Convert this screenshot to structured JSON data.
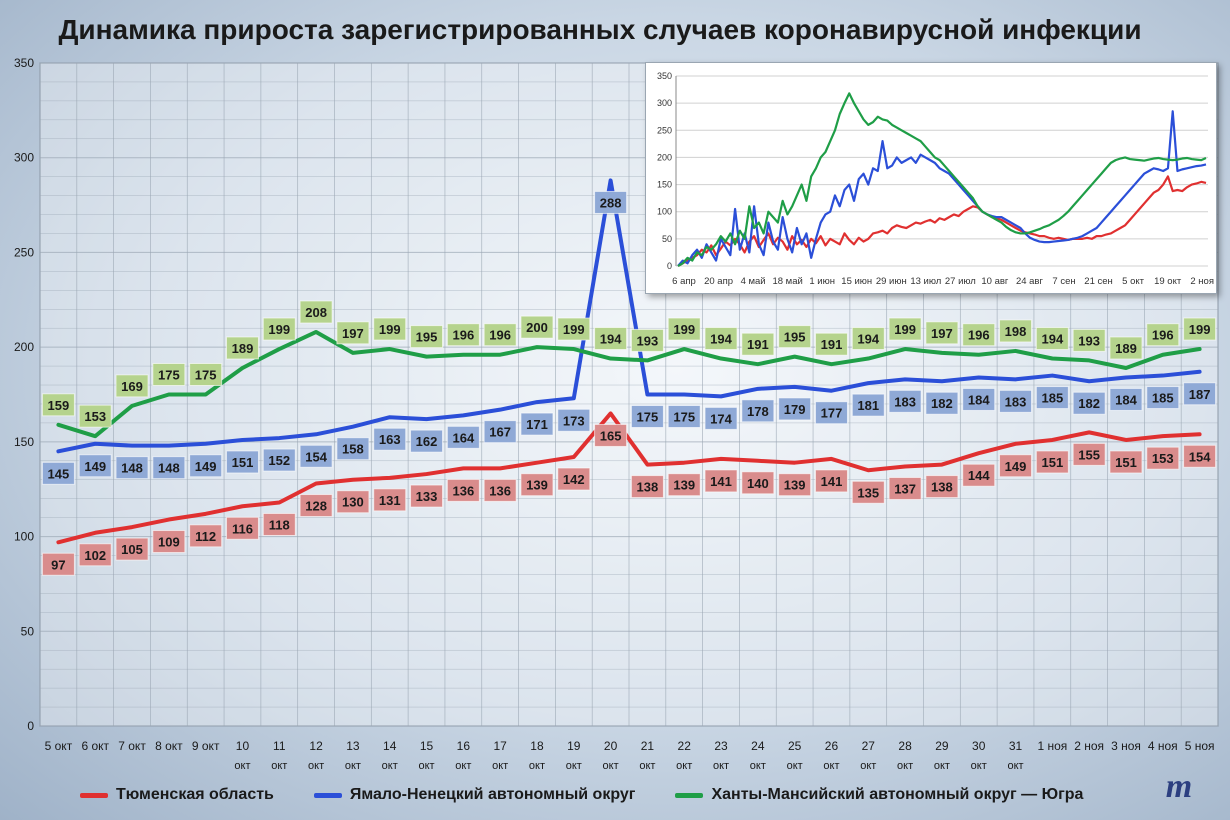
{
  "title": "Динамика прироста зарегистрированных случаев коронавирусной инфекции",
  "colors": {
    "tyumen": "#e03030",
    "yanao": "#2b4fd8",
    "khmao": "#1f9e47",
    "tyumen_label_bg": "#d98c8c",
    "yanao_label_bg": "#8fa9d6",
    "khmao_label_bg": "#b5d38d"
  },
  "chart_data": [
    {
      "type": "line",
      "categories": [
        [
          "5 окт"
        ],
        [
          "6 окт"
        ],
        [
          "7 окт"
        ],
        [
          "8 окт"
        ],
        [
          "9 окт"
        ],
        [
          "10",
          "окт"
        ],
        [
          "11",
          "окт"
        ],
        [
          "12",
          "окт"
        ],
        [
          "13",
          "окт"
        ],
        [
          "14",
          "окт"
        ],
        [
          "15",
          "окт"
        ],
        [
          "16",
          "окт"
        ],
        [
          "17",
          "окт"
        ],
        [
          "18",
          "окт"
        ],
        [
          "19",
          "окт"
        ],
        [
          "20",
          "окт"
        ],
        [
          "21",
          "окт"
        ],
        [
          "22",
          "окт"
        ],
        [
          "23",
          "окт"
        ],
        [
          "24",
          "окт"
        ],
        [
          "25",
          "окт"
        ],
        [
          "26",
          "окт"
        ],
        [
          "27",
          "окт"
        ],
        [
          "28",
          "окт"
        ],
        [
          "29",
          "окт"
        ],
        [
          "30",
          "окт"
        ],
        [
          "31",
          "окт"
        ],
        [
          "1 ноя"
        ],
        [
          "2 ноя"
        ],
        [
          "3 ноя"
        ],
        [
          "4 ноя"
        ],
        [
          "5 ноя"
        ]
      ],
      "yticks": [
        "0",
        "50",
        "100",
        "150",
        "200",
        "250",
        "300",
        "350"
      ],
      "ylim": [
        0,
        350
      ],
      "grid": true,
      "series": [
        {
          "name": "Тюменская область",
          "color": "#e03030",
          "labels": "below",
          "values": [
            97,
            102,
            105,
            109,
            112,
            116,
            118,
            128,
            130,
            131,
            133,
            136,
            136,
            139,
            142,
            165,
            138,
            139,
            141,
            140,
            139,
            141,
            135,
            137,
            138,
            144,
            149,
            151,
            155,
            151,
            153,
            154
          ]
        },
        {
          "name": "Ямало-Ненецкий автономный округ",
          "color": "#2b4fd8",
          "labels": "below",
          "values": [
            145,
            149,
            148,
            148,
            149,
            151,
            152,
            154,
            158,
            163,
            162,
            164,
            167,
            171,
            173,
            288,
            175,
            175,
            174,
            178,
            179,
            177,
            181,
            183,
            182,
            184,
            183,
            185,
            182,
            184,
            185,
            187
          ]
        },
        {
          "name": "Ханты-Мансийский автономный округ — Югра",
          "color": "#1f9e47",
          "labels": "above",
          "values": [
            159,
            153,
            169,
            175,
            175,
            189,
            199,
            208,
            197,
            199,
            195,
            196,
            196,
            200,
            199,
            194,
            193,
            199,
            194,
            191,
            195,
            191,
            194,
            199,
            197,
            196,
            198,
            194,
            193,
            189,
            196,
            199
          ]
        }
      ]
    },
    {
      "type": "line",
      "xticks": [
        "6 апр",
        "20 апр",
        "4 май",
        "18 май",
        "1 июн",
        "15 июн",
        "29 июн",
        "13 июл",
        "27 июл",
        "10 авг",
        "24 авг",
        "7 сен",
        "21 сен",
        "5 окт",
        "19 окт",
        "2 ноя"
      ],
      "yticks": [
        "0",
        "50",
        "100",
        "150",
        "200",
        "250",
        "300",
        "350"
      ],
      "ylim": [
        0,
        350
      ],
      "grid": true,
      "series": [
        {
          "name": "Тюменская область",
          "color": "#e03030",
          "values": [
            0,
            5,
            10,
            15,
            20,
            30,
            25,
            38,
            20,
            32,
            45,
            38,
            50,
            40,
            25,
            45,
            55,
            35,
            48,
            60,
            40,
            52,
            45,
            30,
            55,
            40,
            48,
            35,
            50,
            42,
            55,
            38,
            50,
            45,
            40,
            60,
            48,
            40,
            52,
            45,
            50,
            60,
            62,
            65,
            60,
            70,
            75,
            72,
            70,
            75,
            80,
            78,
            82,
            85,
            80,
            88,
            85,
            90,
            95,
            92,
            100,
            105,
            110,
            108,
            100,
            95,
            90,
            88,
            85,
            80,
            75,
            70,
            65,
            62,
            60,
            58,
            55,
            55,
            52,
            50,
            52,
            50,
            48,
            50,
            50,
            50,
            52,
            50,
            55,
            55,
            58,
            60,
            65,
            70,
            75,
            85,
            95,
            105,
            115,
            125,
            135,
            140,
            150,
            165,
            138,
            140,
            138,
            145,
            150,
            152,
            155,
            153
          ]
        },
        {
          "name": "Ямало-Ненецкий автономный округ",
          "color": "#2b4fd8",
          "values": [
            0,
            10,
            5,
            20,
            30,
            15,
            40,
            25,
            10,
            50,
            35,
            20,
            105,
            30,
            60,
            25,
            110,
            40,
            20,
            80,
            45,
            30,
            90,
            50,
            25,
            70,
            40,
            60,
            15,
            50,
            80,
            95,
            100,
            130,
            110,
            140,
            150,
            120,
            160,
            170,
            150,
            180,
            175,
            230,
            180,
            185,
            200,
            190,
            195,
            200,
            190,
            205,
            200,
            195,
            190,
            180,
            175,
            170,
            160,
            150,
            140,
            130,
            120,
            110,
            100,
            95,
            92,
            90,
            90,
            85,
            80,
            75,
            70,
            60,
            52,
            48,
            45,
            44,
            44,
            45,
            46,
            47,
            48,
            50,
            52,
            55,
            60,
            65,
            70,
            80,
            90,
            100,
            110,
            120,
            130,
            140,
            150,
            160,
            170,
            175,
            180,
            178,
            175,
            180,
            285,
            175,
            178,
            180,
            182,
            184,
            185,
            187
          ]
        },
        {
          "name": "Ханты-Мансийский автономный округ — Югра",
          "color": "#1f9e47",
          "values": [
            0,
            5,
            15,
            10,
            25,
            20,
            35,
            30,
            40,
            55,
            45,
            60,
            40,
            65,
            50,
            110,
            70,
            80,
            60,
            100,
            90,
            80,
            120,
            95,
            110,
            130,
            150,
            120,
            165,
            180,
            200,
            210,
            230,
            250,
            280,
            300,
            318,
            300,
            285,
            270,
            260,
            265,
            275,
            270,
            268,
            260,
            255,
            250,
            245,
            240,
            235,
            230,
            220,
            210,
            200,
            195,
            185,
            175,
            165,
            155,
            145,
            135,
            125,
            110,
            100,
            95,
            90,
            85,
            80,
            72,
            66,
            62,
            60,
            60,
            62,
            65,
            68,
            72,
            75,
            80,
            85,
            92,
            100,
            110,
            120,
            130,
            140,
            150,
            160,
            170,
            180,
            190,
            195,
            198,
            200,
            197,
            196,
            195,
            194,
            196,
            198,
            199,
            197,
            196,
            195,
            196,
            198,
            199,
            197,
            196,
            195,
            199
          ]
        }
      ]
    }
  ]
}
